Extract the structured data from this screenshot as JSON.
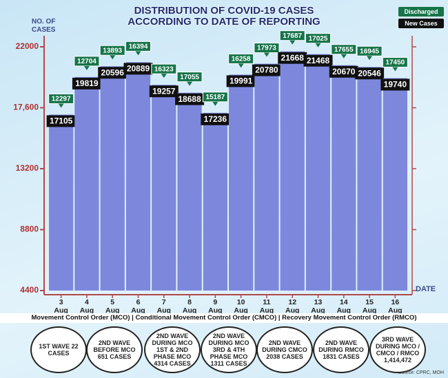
{
  "chart_data": {
    "type": "bar",
    "title": "DISTRIBUTION OF COVID-19 CASES ACCORDING TO DATE OF REPORTING",
    "y_label": "NO. OF CASES",
    "x_label": "DATE",
    "categories": [
      "3",
      "4",
      "5",
      "6",
      "7",
      "8",
      "9",
      "10",
      "11",
      "12",
      "13",
      "14",
      "15",
      "16"
    ],
    "month": "Aug",
    "series": [
      {
        "name": "New Cases",
        "color": "#111111",
        "bar_color": "#7d88dc",
        "values": [
          17105,
          19819,
          20596,
          20889,
          19257,
          18688,
          17236,
          19991,
          20780,
          21668,
          21468,
          20670,
          20546,
          19740
        ]
      },
      {
        "name": "Discharged",
        "color": "#17744a",
        "values": [
          12297,
          12704,
          13893,
          16394,
          16323,
          17055,
          15187,
          16258,
          17973,
          17687,
          17025,
          17655,
          16945,
          17450
        ]
      }
    ],
    "ylim": [
      4400,
      22000
    ],
    "yticks": [
      4400,
      8800,
      13200,
      {
        "value": 17600,
        "label": "17,600"
      },
      22000
    ],
    "subtitle": "Movement Control Order (MCO) | Conditional Movement Control Order (CMCO) | Recovery Movement Control Order (RMCO)",
    "waves": [
      "1ST WAVE 22 CASES",
      "2ND WAVE BEFORE MCO 651 CASES",
      "2ND WAVE DURING MCO 1ST & 2ND PHASE MCO 4314 CASES",
      "2ND WAVE DURING MCO 3RD & 4TH PHASE MCO 1311 CASES",
      "2ND WAVE DURING CMCO 2038 CASES",
      "2ND WAVE DURING RMCO 1831 CASES",
      "3RD WAVE DURING MCO / CMCO / RMCO 1,414,472"
    ],
    "source": "Source: CPRC, MOH"
  }
}
